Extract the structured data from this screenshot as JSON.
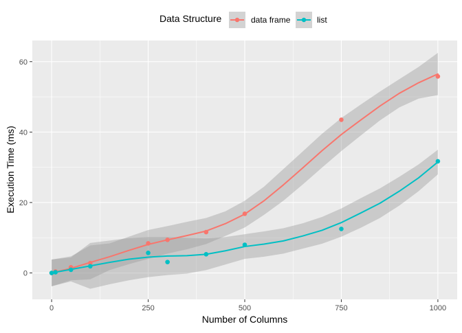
{
  "chart_data": {
    "type": "scatter",
    "legend": {
      "title": "Data Structure",
      "position": "top"
    },
    "xlabel": "Number of Columns",
    "ylabel": "Execution Time (ms)",
    "xlim": [
      -50,
      1050
    ],
    "ylim": [
      -7.5,
      66
    ],
    "xticks": [
      0,
      250,
      500,
      750,
      1000
    ],
    "xtick_labels": [
      "0",
      "250",
      "500",
      "750",
      "1000"
    ],
    "yticks": [
      0,
      20,
      40,
      60
    ],
    "ytick_labels": [
      "0",
      "20",
      "40",
      "60"
    ],
    "grid": true,
    "series": [
      {
        "name": "data frame",
        "color": "#F8766D",
        "points": [
          [
            0,
            0.0
          ],
          [
            10,
            0.4
          ],
          [
            50,
            1.6
          ],
          [
            100,
            2.8
          ],
          [
            250,
            8.4
          ],
          [
            300,
            9.4
          ],
          [
            400,
            11.6
          ],
          [
            500,
            16.8
          ],
          [
            750,
            43.5
          ],
          [
            1000,
            55.8
          ]
        ],
        "smooth": [
          [
            0,
            0.0
          ],
          [
            50,
            1.3
          ],
          [
            100,
            3.0
          ],
          [
            150,
            4.6
          ],
          [
            200,
            6.4
          ],
          [
            250,
            8.1
          ],
          [
            300,
            9.4
          ],
          [
            350,
            10.6
          ],
          [
            400,
            11.9
          ],
          [
            450,
            14.0
          ],
          [
            500,
            16.7
          ],
          [
            550,
            20.5
          ],
          [
            600,
            25.0
          ],
          [
            650,
            29.8
          ],
          [
            700,
            34.7
          ],
          [
            750,
            39.3
          ],
          [
            800,
            43.4
          ],
          [
            850,
            47.4
          ],
          [
            900,
            51.0
          ],
          [
            950,
            54.0
          ],
          [
            1000,
            56.5
          ]
        ],
        "band_upper": [
          [
            0,
            3.8
          ],
          [
            50,
            4.7
          ],
          [
            100,
            7.8
          ],
          [
            150,
            8.4
          ],
          [
            200,
            10.3
          ],
          [
            250,
            12.2
          ],
          [
            300,
            13.3
          ],
          [
            350,
            14.5
          ],
          [
            400,
            15.6
          ],
          [
            450,
            17.5
          ],
          [
            500,
            20.5
          ],
          [
            550,
            24.5
          ],
          [
            600,
            29.5
          ],
          [
            650,
            34.5
          ],
          [
            700,
            39.5
          ],
          [
            750,
            44.0
          ],
          [
            800,
            47.8
          ],
          [
            850,
            51.5
          ],
          [
            900,
            55.0
          ],
          [
            950,
            58.5
          ],
          [
            1000,
            62.5
          ]
        ],
        "band_lower": [
          [
            0,
            -3.8
          ],
          [
            50,
            -2.1
          ],
          [
            100,
            -1.8
          ],
          [
            150,
            0.8
          ],
          [
            200,
            2.5
          ],
          [
            250,
            4.0
          ],
          [
            300,
            5.5
          ],
          [
            350,
            6.7
          ],
          [
            400,
            8.2
          ],
          [
            450,
            10.5
          ],
          [
            500,
            12.9
          ],
          [
            550,
            16.5
          ],
          [
            600,
            20.5
          ],
          [
            650,
            25.1
          ],
          [
            700,
            29.9
          ],
          [
            750,
            34.6
          ],
          [
            800,
            39.0
          ],
          [
            850,
            43.3
          ],
          [
            900,
            47.0
          ],
          [
            950,
            49.5
          ],
          [
            1000,
            50.5
          ]
        ]
      },
      {
        "name": "list",
        "color": "#00BFC4",
        "points": [
          [
            0,
            0.0
          ],
          [
            10,
            0.2
          ],
          [
            50,
            0.9
          ],
          [
            100,
            1.9
          ],
          [
            250,
            5.7
          ],
          [
            300,
            3.1
          ],
          [
            400,
            5.3
          ],
          [
            500,
            8.0
          ],
          [
            750,
            12.5
          ],
          [
            1000,
            31.7
          ]
        ],
        "smooth": [
          [
            0,
            0.0
          ],
          [
            50,
            1.0
          ],
          [
            100,
            2.0
          ],
          [
            150,
            3.0
          ],
          [
            200,
            3.9
          ],
          [
            250,
            4.5
          ],
          [
            300,
            4.8
          ],
          [
            350,
            4.9
          ],
          [
            400,
            5.3
          ],
          [
            450,
            6.3
          ],
          [
            500,
            7.5
          ],
          [
            550,
            8.2
          ],
          [
            600,
            9.1
          ],
          [
            650,
            10.5
          ],
          [
            700,
            12.1
          ],
          [
            750,
            14.3
          ],
          [
            800,
            17.0
          ],
          [
            850,
            19.8
          ],
          [
            900,
            23.2
          ],
          [
            950,
            27.0
          ],
          [
            1000,
            31.5
          ]
        ],
        "band_upper": [
          [
            0,
            3.8
          ],
          [
            50,
            4.4
          ],
          [
            100,
            8.5
          ],
          [
            150,
            9.2
          ],
          [
            200,
            9.9
          ],
          [
            250,
            10.2
          ],
          [
            300,
            10.2
          ],
          [
            350,
            10.0
          ],
          [
            400,
            9.8
          ],
          [
            450,
            10.2
          ],
          [
            500,
            11.0
          ],
          [
            550,
            11.8
          ],
          [
            600,
            12.7
          ],
          [
            650,
            14.1
          ],
          [
            700,
            15.9
          ],
          [
            750,
            18.3
          ],
          [
            800,
            21.2
          ],
          [
            850,
            24.0
          ],
          [
            900,
            27.3
          ],
          [
            950,
            30.8
          ],
          [
            1000,
            35.0
          ]
        ],
        "band_lower": [
          [
            0,
            -3.8
          ],
          [
            50,
            -2.4
          ],
          [
            100,
            -4.5
          ],
          [
            150,
            -3.2
          ],
          [
            200,
            -2.1
          ],
          [
            250,
            -1.2
          ],
          [
            300,
            -0.6
          ],
          [
            350,
            -0.2
          ],
          [
            400,
            0.8
          ],
          [
            450,
            2.4
          ],
          [
            500,
            4.0
          ],
          [
            550,
            4.6
          ],
          [
            600,
            5.5
          ],
          [
            650,
            6.9
          ],
          [
            700,
            8.3
          ],
          [
            750,
            10.3
          ],
          [
            800,
            12.8
          ],
          [
            850,
            15.6
          ],
          [
            900,
            19.1
          ],
          [
            950,
            23.2
          ],
          [
            1000,
            28.0
          ]
        ]
      }
    ]
  }
}
